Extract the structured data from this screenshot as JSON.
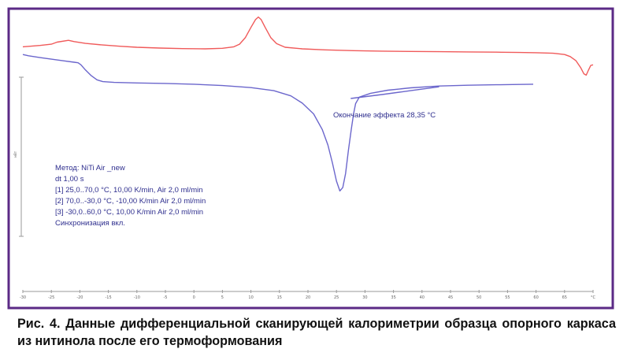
{
  "figure_caption": "Рис. 4. Данные дифференциальной сканирующей калориметрии образца опорного каркаса из нитинола после его термоформования",
  "colors": {
    "frame": "#5b2a86",
    "heating_curve": "#f05a5a",
    "cooling_curve": "#6b66cc",
    "annotation_text": "#2e2e8e"
  },
  "chart_data": {
    "type": "line",
    "title": "",
    "xlabel": "",
    "ylabel": "",
    "x_unit_label": "°C",
    "xlim": [
      -30,
      70
    ],
    "ticks": [
      "-30",
      "-25",
      "-20",
      "-15",
      "-10",
      "-5",
      "0",
      "5",
      "10",
      "15",
      "20",
      "25",
      "30",
      "35",
      "40",
      "45",
      "50",
      "55",
      "60",
      "65",
      "°C"
    ],
    "y_axis_mark": "мВт",
    "annotation": "Окончание эффекта   28,35 °C",
    "method_block": [
      "Метод: NiTi Air _new",
      "dt 1,00 s",
      "[1] 25,0..70,0 °C, 10,00 K/min, Air 2,0 ml/min",
      "[2] 70,0..-30,0 °C, -10,00 K/min  Air 2,0 ml/min",
      "[3] -30,0..60,0 °C, 10,00 K/min   Air 2,0 ml/min",
      "Синхронизация вкл."
    ],
    "series": [
      {
        "color": "#f05a5a",
        "points": [
          [
            -30,
            0.88
          ],
          [
            -27,
            0.885
          ],
          [
            -25,
            0.89
          ],
          [
            -24,
            0.898
          ],
          [
            -22,
            0.905
          ],
          [
            -21,
            0.9
          ],
          [
            -19,
            0.893
          ],
          [
            -16,
            0.887
          ],
          [
            -13,
            0.882
          ],
          [
            -10,
            0.878
          ],
          [
            -6,
            0.875
          ],
          [
            -2,
            0.873
          ],
          [
            2,
            0.872
          ],
          [
            5,
            0.874
          ],
          [
            7,
            0.88
          ],
          [
            8,
            0.89
          ],
          [
            9,
            0.915
          ],
          [
            10,
            0.955
          ],
          [
            10.8,
            0.985
          ],
          [
            11.3,
            0.995
          ],
          [
            11.8,
            0.985
          ],
          [
            12.5,
            0.955
          ],
          [
            13.5,
            0.915
          ],
          [
            14.5,
            0.892
          ],
          [
            16,
            0.878
          ],
          [
            19,
            0.872
          ],
          [
            23,
            0.868
          ],
          [
            28,
            0.865
          ],
          [
            33,
            0.863
          ],
          [
            38,
            0.862
          ],
          [
            43,
            0.861
          ],
          [
            48,
            0.86
          ],
          [
            53,
            0.859
          ],
          [
            57,
            0.858
          ],
          [
            60,
            0.857
          ],
          [
            63,
            0.855
          ],
          [
            65,
            0.85
          ],
          [
            66,
            0.842
          ],
          [
            67,
            0.826
          ],
          [
            67.8,
            0.8
          ],
          [
            68.4,
            0.775
          ],
          [
            68.8,
            0.77
          ],
          [
            69.2,
            0.79
          ],
          [
            69.6,
            0.808
          ],
          [
            70,
            0.81
          ]
        ]
      },
      {
        "color": "#6b66cc",
        "points": [
          [
            -30,
            0.85
          ],
          [
            -29,
            0.845
          ],
          [
            -27,
            0.838
          ],
          [
            -25,
            0.832
          ],
          [
            -23,
            0.826
          ],
          [
            -21,
            0.82
          ],
          [
            -20.3,
            0.818
          ],
          [
            -19.8,
            0.81
          ],
          [
            -19,
            0.79
          ],
          [
            -18,
            0.768
          ],
          [
            -17,
            0.752
          ],
          [
            -16,
            0.745
          ],
          [
            -14,
            0.742
          ],
          [
            -10,
            0.74
          ],
          [
            -5,
            0.738
          ],
          [
            0,
            0.735
          ],
          [
            5,
            0.73
          ],
          [
            10,
            0.722
          ],
          [
            14,
            0.71
          ],
          [
            17,
            0.69
          ],
          [
            19,
            0.662
          ],
          [
            21,
            0.62
          ],
          [
            22.5,
            0.56
          ],
          [
            23.5,
            0.5
          ],
          [
            24.3,
            0.43
          ],
          [
            25,
            0.36
          ],
          [
            25.6,
            0.322
          ],
          [
            26.1,
            0.335
          ],
          [
            26.6,
            0.39
          ],
          [
            27.1,
            0.48
          ],
          [
            27.6,
            0.56
          ],
          [
            28,
            0.62
          ],
          [
            28.35,
            0.66
          ],
          [
            29,
            0.685
          ],
          [
            31,
            0.7
          ],
          [
            34,
            0.712
          ],
          [
            38,
            0.721
          ],
          [
            43,
            0.728
          ],
          [
            48,
            0.731
          ],
          [
            53,
            0.733
          ],
          [
            57,
            0.734
          ],
          [
            59.5,
            0.735
          ]
        ]
      },
      {
        "color": "#6b66cc",
        "points": [
          [
            27.5,
            0.68
          ],
          [
            33,
            0.695
          ],
          [
            38,
            0.71
          ],
          [
            43,
            0.725
          ]
        ]
      }
    ]
  }
}
